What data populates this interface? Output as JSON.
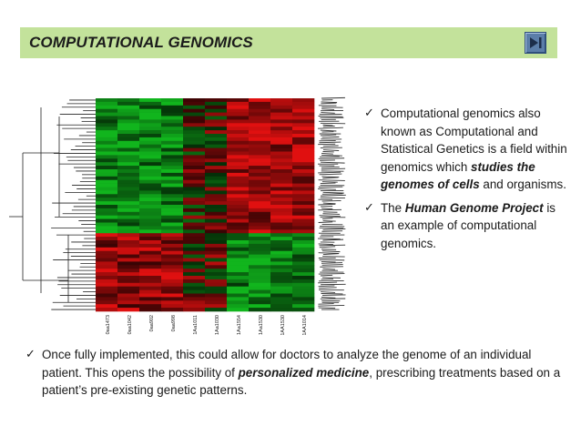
{
  "slide": {
    "title": "COMPUTATIONAL GENOMICS",
    "nav_icon": "next-slide-icon"
  },
  "heatmap": {
    "type": "heatmap",
    "sample_labels": [
      "0aa1473",
      "0aa1042",
      "0aa902",
      "0aa998",
      "1Aa1011",
      "1Aa1030",
      "1Aa1554",
      "1Aa1530",
      "1AA1530",
      "1AA1014"
    ],
    "colors": {
      "up": "#e01010",
      "down": "#11b51d",
      "neutral": "#000000"
    }
  },
  "bullets_right": [
    {
      "icon": "check-icon",
      "part1": "Computational genomics also known as Computational and Statistical Genetics is a field within genomics which ",
      "emphasis": "studies the genomes of cells",
      "part2": " and organisms."
    },
    {
      "icon": "check-icon",
      "part1": "The ",
      "emphasis": "Human Genome Project",
      "part2": " is an example of computational genomics."
    }
  ],
  "bullet_bottom": {
    "icon": "check-icon",
    "part1": "Once fully implemented, this could allow for doctors to analyze the genome of an individual patient. This opens the possibility of ",
    "emphasis": "personalized medicine",
    "part2": ", prescribing treatments based on a patient’s pre-existing genetic patterns."
  }
}
